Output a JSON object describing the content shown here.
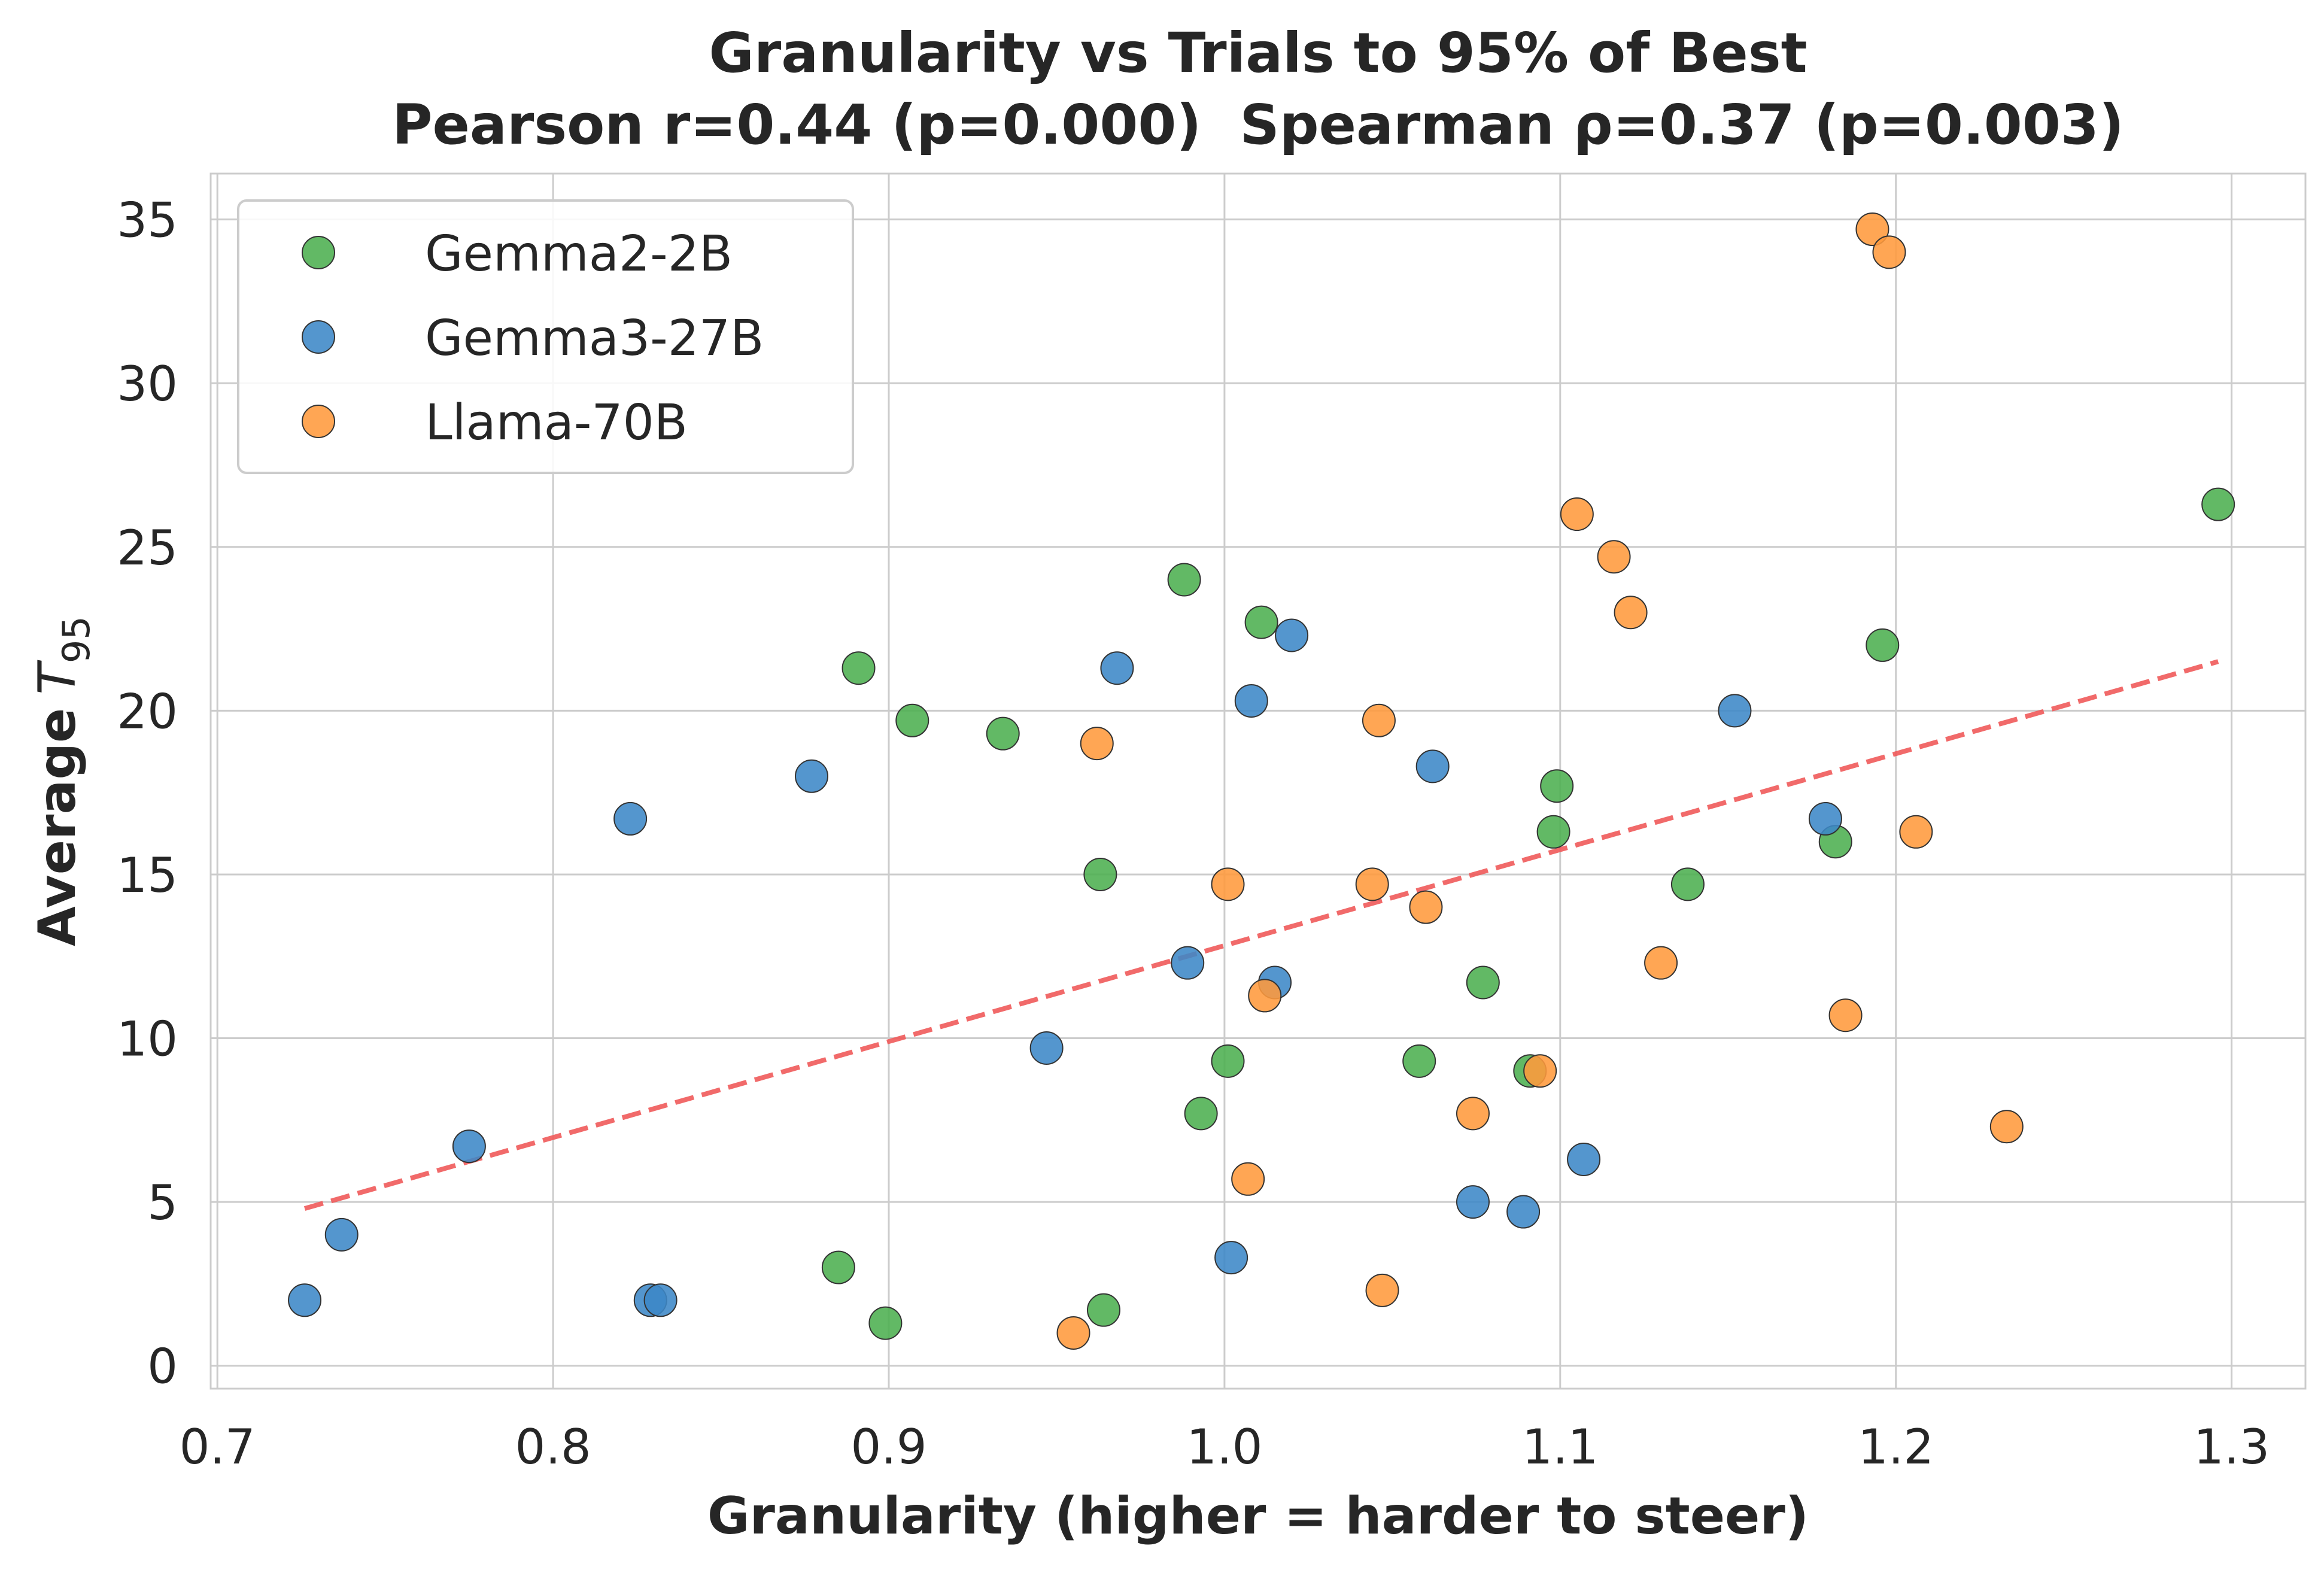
{
  "chart_data": {
    "type": "scatter",
    "title": "Granularity vs Trials to 95% of Best",
    "subtitle": "Pearson r=0.44 (p=0.000)  Spearman ρ=0.37 (p=0.003)",
    "xlabel": "Granularity (higher = harder to steer)",
    "ylabel_prefix": "Average",
    "ylabel_symbol": "T",
    "ylabel_subscript": "95",
    "xlim": [
      0.698,
      1.322
    ],
    "ylim": [
      -0.7,
      36.4
    ],
    "xticks": [
      0.7,
      0.8,
      0.9,
      1.0,
      1.1,
      1.2,
      1.3
    ],
    "xtick_labels": [
      "0.7",
      "0.8",
      "0.9",
      "1.0",
      "1.1",
      "1.2",
      "1.3"
    ],
    "yticks": [
      0,
      5,
      10,
      15,
      20,
      25,
      30,
      35
    ],
    "ytick_labels": [
      "0",
      "5",
      "10",
      "15",
      "20",
      "25",
      "30",
      "35"
    ],
    "grid": true,
    "legend_position": "top-left",
    "series": [
      {
        "name": "Gemma2-2B",
        "color": "#4caf50",
        "points": [
          [
            0.891,
            21.3
          ],
          [
            0.907,
            19.7
          ],
          [
            0.934,
            19.3
          ],
          [
            0.988,
            24.0
          ],
          [
            1.011,
            22.7
          ],
          [
            0.963,
            15.0
          ],
          [
            1.001,
            9.3
          ],
          [
            0.993,
            7.7
          ],
          [
            0.885,
            3.0
          ],
          [
            0.899,
            1.3
          ],
          [
            0.964,
            1.7
          ],
          [
            1.058,
            9.3
          ],
          [
            1.077,
            11.7
          ],
          [
            1.091,
            9.0
          ],
          [
            1.099,
            17.7
          ],
          [
            1.098,
            16.3
          ],
          [
            1.138,
            14.7
          ],
          [
            1.182,
            16.0
          ],
          [
            1.196,
            22.0
          ],
          [
            1.296,
            26.3
          ]
        ]
      },
      {
        "name": "Gemma3-27B",
        "color": "#3c88c7",
        "points": [
          [
            0.726,
            2.0
          ],
          [
            0.737,
            4.0
          ],
          [
            0.775,
            6.7
          ],
          [
            0.823,
            16.7
          ],
          [
            0.829,
            2.0
          ],
          [
            0.832,
            2.0
          ],
          [
            0.877,
            18.0
          ],
          [
            0.947,
            9.7
          ],
          [
            0.968,
            21.3
          ],
          [
            0.989,
            12.3
          ],
          [
            1.002,
            3.3
          ],
          [
            1.008,
            20.3
          ],
          [
            1.015,
            11.7
          ],
          [
            1.02,
            22.3
          ],
          [
            1.062,
            18.3
          ],
          [
            1.074,
            5.0
          ],
          [
            1.089,
            4.7
          ],
          [
            1.107,
            6.3
          ],
          [
            1.152,
            20.0
          ],
          [
            1.179,
            16.7
          ]
        ]
      },
      {
        "name": "Llama-70B",
        "color": "#ff9a3c",
        "points": [
          [
            0.955,
            1.0
          ],
          [
            0.962,
            19.0
          ],
          [
            1.001,
            14.7
          ],
          [
            1.007,
            5.7
          ],
          [
            1.012,
            11.3
          ],
          [
            1.044,
            14.7
          ],
          [
            1.046,
            19.7
          ],
          [
            1.047,
            2.3
          ],
          [
            1.06,
            14.0
          ],
          [
            1.074,
            7.7
          ],
          [
            1.094,
            9.0
          ],
          [
            1.105,
            26.0
          ],
          [
            1.116,
            24.7
          ],
          [
            1.121,
            23.0
          ],
          [
            1.13,
            12.3
          ],
          [
            1.185,
            10.7
          ],
          [
            1.193,
            34.7
          ],
          [
            1.198,
            34.0
          ],
          [
            1.206,
            16.3
          ],
          [
            1.233,
            7.3
          ]
        ]
      }
    ],
    "trendline": {
      "color": "#f05a5a",
      "x": [
        0.726,
        1.296
      ],
      "y": [
        4.8,
        21.5
      ]
    }
  }
}
